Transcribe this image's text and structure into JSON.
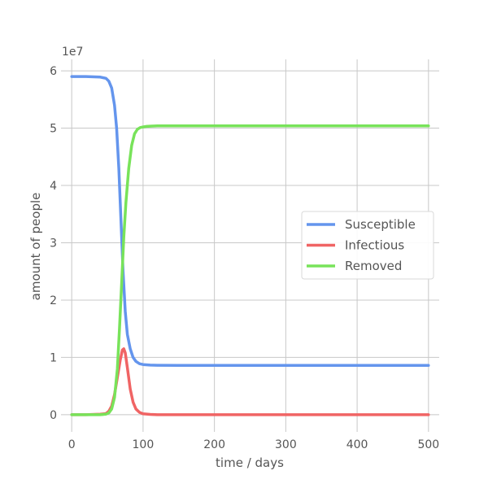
{
  "chart_data": {
    "type": "line",
    "xlabel": "time / days",
    "ylabel": "amount of people",
    "y_offset_label": "1e7",
    "xlim": [
      -15,
      515
    ],
    "ylim": [
      -0.3,
      6.2
    ],
    "x_ticks": [
      0,
      100,
      200,
      300,
      400,
      500
    ],
    "y_ticks": [
      0,
      1,
      2,
      3,
      4,
      5,
      6
    ],
    "grid": true,
    "legend_position": "center-right",
    "series": [
      {
        "name": "Susceptible",
        "color": "#6495ed",
        "x": [
          0,
          20,
          40,
          48,
          52,
          56,
          60,
          63,
          66,
          69,
          72,
          75,
          78,
          82,
          86,
          90,
          95,
          100,
          110,
          120,
          150,
          200,
          300,
          400,
          500
        ],
        "y": [
          5.9,
          5.9,
          5.89,
          5.87,
          5.82,
          5.7,
          5.4,
          5.0,
          4.3,
          3.4,
          2.5,
          1.8,
          1.4,
          1.15,
          1.0,
          0.93,
          0.89,
          0.875,
          0.865,
          0.862,
          0.86,
          0.86,
          0.86,
          0.86,
          0.86
        ]
      },
      {
        "name": "Infectious",
        "color": "#f06464",
        "x": [
          0,
          20,
          40,
          48,
          52,
          56,
          60,
          64,
          68,
          71,
          73,
          75,
          78,
          82,
          86,
          90,
          95,
          100,
          110,
          120,
          150,
          200,
          300,
          400,
          500
        ],
        "y": [
          0.0,
          0.0,
          0.01,
          0.02,
          0.06,
          0.15,
          0.35,
          0.65,
          0.95,
          1.13,
          1.15,
          1.08,
          0.82,
          0.45,
          0.22,
          0.1,
          0.04,
          0.015,
          0.005,
          0.0,
          0.0,
          0.0,
          0.0,
          0.0,
          0.0
        ]
      },
      {
        "name": "Removed",
        "color": "#78e35a",
        "x": [
          0,
          20,
          40,
          48,
          52,
          56,
          60,
          64,
          67,
          70,
          73,
          76,
          80,
          84,
          88,
          92,
          96,
          100,
          105,
          110,
          120,
          150,
          200,
          300,
          400,
          500
        ],
        "y": [
          0.0,
          0.0,
          0.0,
          0.01,
          0.03,
          0.1,
          0.3,
          0.8,
          1.5,
          2.3,
          3.1,
          3.7,
          4.3,
          4.7,
          4.9,
          4.98,
          5.01,
          5.02,
          5.03,
          5.035,
          5.04,
          5.04,
          5.04,
          5.04,
          5.04,
          5.04
        ]
      }
    ]
  }
}
